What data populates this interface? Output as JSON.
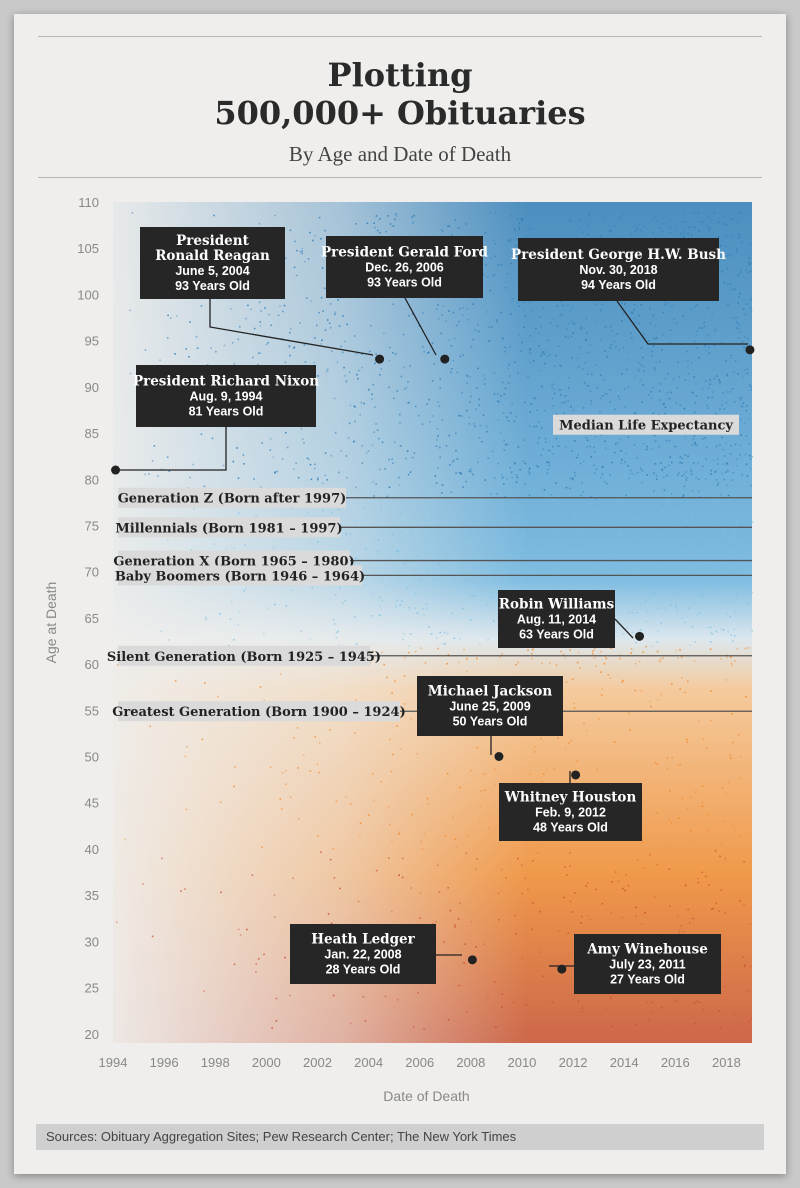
{
  "title_line1": "Plotting",
  "title_line2": "500,000+ Obituaries",
  "subtitle": "By Age and Date of Death",
  "source": "Sources: Obituary Aggregation Sites; Pew Research Center; The New York Times",
  "colors": {
    "old": "#2f7db7",
    "mid": "#7fc1e3",
    "young": "#f08a2e",
    "youngest": "#c64f2e",
    "label_box": "#262626",
    "band_box": "#dadada"
  },
  "chart_data": {
    "type": "scatter",
    "title": "Plotting 500,000+ Obituaries",
    "subtitle": "By Age and Date of Death",
    "xlabel": "Date of Death",
    "ylabel": "Age at Death",
    "xlim": [
      1994,
      2019
    ],
    "ylim": [
      19,
      110
    ],
    "x_ticks": [
      "1994",
      "1996",
      "1998",
      "2000",
      "2002",
      "2004",
      "2006",
      "2008",
      "2010",
      "2012",
      "2014",
      "2016",
      "2018"
    ],
    "y_ticks": [
      "20",
      "25",
      "30",
      "35",
      "40",
      "45",
      "50",
      "55",
      "60",
      "65",
      "70",
      "75",
      "80",
      "85",
      "90",
      "95",
      "100",
      "105",
      "110"
    ],
    "grid": false,
    "annotations": [
      {
        "lines": [
          "President",
          "Ronald Reagan",
          "June 5, 2004",
          "93 Years Old"
        ],
        "x": 2004.43,
        "y": 93
      },
      {
        "lines": [
          "President Gerald Ford",
          "Dec. 26, 2006",
          "93 Years Old"
        ],
        "x": 2006.98,
        "y": 93
      },
      {
        "lines": [
          "President George H.W. Bush",
          "Nov. 30, 2018",
          "94 Years Old"
        ],
        "x": 2018.92,
        "y": 94
      },
      {
        "lines": [
          "President Richard Nixon",
          "Aug. 9, 1994",
          "81 Years Old"
        ],
        "x": 1994.1,
        "y": 81
      },
      {
        "lines": [
          "Robin Williams",
          "Aug. 11, 2014",
          "63 Years Old"
        ],
        "x": 2014.6,
        "y": 63
      },
      {
        "lines": [
          "Michael Jackson",
          "June 25, 2009",
          "50 Years Old"
        ],
        "x": 2009.1,
        "y": 50
      },
      {
        "lines": [
          "Whitney Houston",
          "Feb. 9, 2012",
          "48 Years Old"
        ],
        "x": 2012.1,
        "y": 48
      },
      {
        "lines": [
          "Heath Ledger",
          "Jan. 22, 2008",
          "28 Years Old"
        ],
        "x": 2008.06,
        "y": 28
      },
      {
        "lines": [
          "Amy Winehouse",
          "July 23, 2011",
          "27 Years Old"
        ],
        "x": 2011.56,
        "y": 27
      }
    ],
    "reference_lines": [
      {
        "label": "Median Life Expectancy",
        "y": 85.9
      },
      {
        "label": "Generation Z (Born after 1997)",
        "y": 78
      },
      {
        "label": "Millennials (Born 1981 – 1997)",
        "y": 74.8
      },
      {
        "label": "Generation X (Born 1965 – 1980)",
        "y": 71.2
      },
      {
        "label": "Baby Boomers (Born 1946 – 1964)",
        "y": 69.6
      },
      {
        "label": "Silent Generation (Born 1925 – 1945)",
        "y": 60.9
      },
      {
        "label": "Greatest Generation (Born 1900 – 1924)",
        "y": 54.9
      }
    ]
  }
}
